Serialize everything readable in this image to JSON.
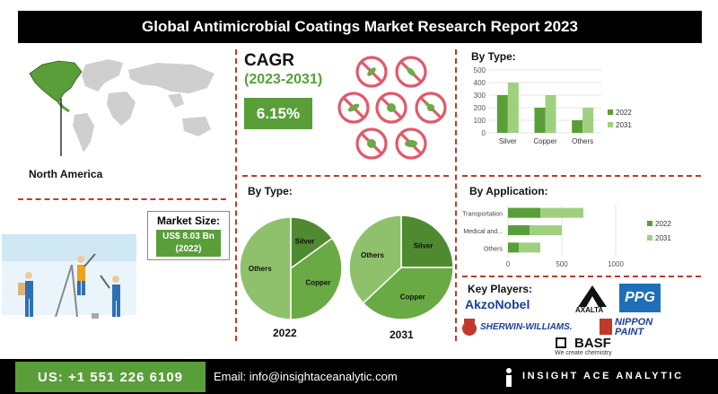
{
  "header": {
    "title": "Global Antimicrobial Coatings Market Research Report 2023"
  },
  "region": {
    "label": "North America"
  },
  "cagr": {
    "title": "CAGR",
    "period": "(2023-2031)",
    "value": "6.15%"
  },
  "market_size": {
    "title": "Market Size:",
    "value_line1": "US$ 8.03 Bn",
    "value_line2": "(2022)"
  },
  "key_players": {
    "title": "Key Players:",
    "akzonobel": "AkzoNobel",
    "axalta": "AXALTA",
    "ppg": "PPG",
    "sherwin": "SHERWIN-WILLIAMS.",
    "nippon_line1": "NIPPON",
    "nippon_line2": "PAINT",
    "basf": "BASF",
    "basf_tagline": "We create chemistry"
  },
  "footer": {
    "phone": "US: +1 551 226 6109",
    "email": "Email: info@insightaceanalytic.com",
    "brand": "INSIGHT ACE ANALYTIC"
  },
  "colors": {
    "dark_green": "#5a9e3a",
    "light_green": "#9fd07f",
    "pie_dark": "#4f8a30",
    "pie_mid": "#6aaa45",
    "pie_light": "#8fc16c"
  },
  "chart_data": [
    {
      "type": "bar",
      "title": "By Type:",
      "categories": [
        "Silver",
        "Copper",
        "Others"
      ],
      "series": [
        {
          "name": "2022",
          "values": [
            300,
            200,
            100
          ]
        },
        {
          "name": "2031",
          "values": [
            400,
            300,
            200
          ]
        }
      ],
      "ylim": [
        0,
        500
      ],
      "yticks": [
        "0",
        "100",
        "200",
        "300",
        "400",
        "500"
      ],
      "legend": "right"
    },
    {
      "type": "bar",
      "orientation": "horizontal",
      "title": "By Application:",
      "categories": [
        "Transportation",
        "Medical and...",
        "Others"
      ],
      "series": [
        {
          "name": "2022",
          "values": [
            300,
            200,
            100
          ]
        },
        {
          "name": "2031",
          "values": [
            700,
            500,
            300
          ]
        }
      ],
      "xlim": [
        0,
        1000
      ],
      "xticks": [
        "0",
        "500",
        "1000"
      ],
      "legend": "right"
    },
    {
      "type": "pie",
      "title": "By Type:",
      "label": "2022",
      "slices": [
        {
          "name": "Silver",
          "value": 15
        },
        {
          "name": "Copper",
          "value": 35
        },
        {
          "name": "Others",
          "value": 50
        }
      ]
    },
    {
      "type": "pie",
      "label": "2031",
      "slices": [
        {
          "name": "Silver",
          "value": 25
        },
        {
          "name": "Copper",
          "value": 38
        },
        {
          "name": "Others",
          "value": 37
        }
      ]
    }
  ]
}
